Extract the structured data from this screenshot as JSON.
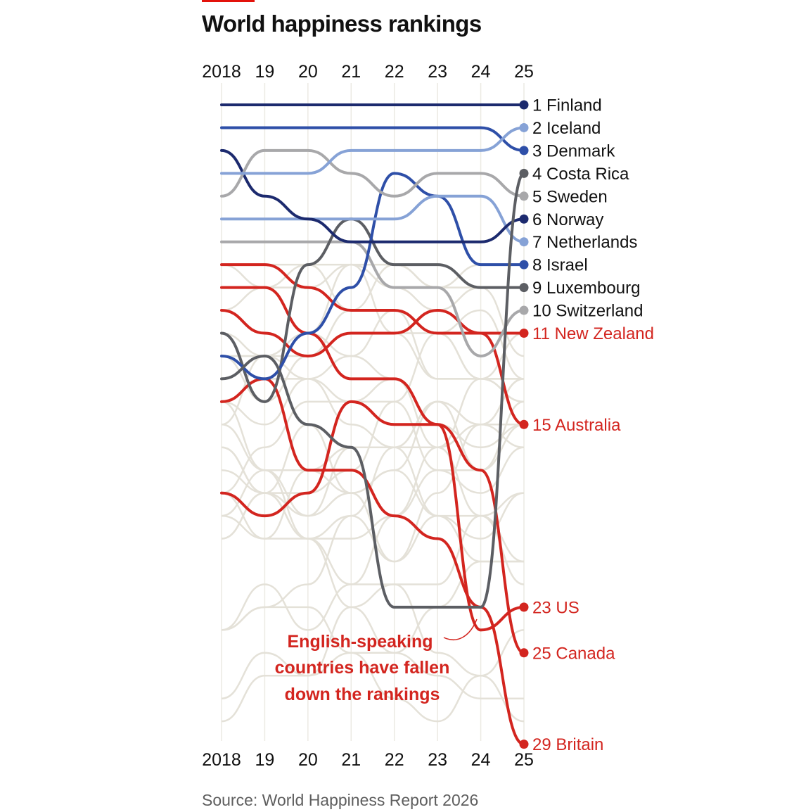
{
  "chart_data": {
    "type": "bump",
    "title": "World happiness rankings",
    "source": "Source: World Happiness Report 2026",
    "years": [
      "2018",
      "19",
      "20",
      "21",
      "22",
      "23",
      "24",
      "25"
    ],
    "annotation": [
      "English-speaking",
      "countries have fallen",
      "down the rankings"
    ],
    "series": [
      {
        "name": "Finland",
        "label": "1 Finland",
        "color": "#1c2a6e",
        "ranks": [
          1,
          1,
          1,
          1,
          1,
          1,
          1,
          1
        ]
      },
      {
        "name": "Iceland",
        "label": "2 Iceland",
        "color": "#86a2d6",
        "ranks": [
          4,
          4,
          4,
          3,
          3,
          3,
          3,
          2
        ]
      },
      {
        "name": "Denmark",
        "label": "3 Denmark",
        "color": "#2e4fa8",
        "ranks": [
          2,
          2,
          2,
          2,
          2,
          2,
          2,
          3
        ]
      },
      {
        "name": "Costa Rica",
        "label": "4 Costa Rica",
        "color": "#5c5e63",
        "ranks": [
          13,
          12,
          15,
          16,
          23,
          23,
          23,
          4
        ]
      },
      {
        "name": "Sweden",
        "label": "5 Sweden",
        "color": "#a8a8aa",
        "ranks": [
          5,
          3,
          3,
          4,
          5,
          4,
          4,
          5
        ]
      },
      {
        "name": "Norway",
        "label": "6 Norway",
        "color": "#1c2a6e",
        "ranks": [
          3,
          5,
          6,
          7,
          7,
          7,
          7,
          6
        ]
      },
      {
        "name": "Netherlands",
        "label": "7 Netherlands",
        "color": "#86a2d6",
        "ranks": [
          6,
          6,
          6,
          6,
          6,
          5,
          5,
          7
        ]
      },
      {
        "name": "Israel",
        "label": "8 Israel",
        "color": "#2e4fa8",
        "ranks": [
          12,
          13,
          11,
          9,
          4,
          5,
          8,
          8
        ]
      },
      {
        "name": "Luxembourg",
        "label": "9 Luxembourg",
        "color": "#5c5e63",
        "ranks": [
          11,
          14,
          8,
          6,
          8,
          8,
          9,
          9
        ]
      },
      {
        "name": "Switzerland",
        "label": "10 Switzerland",
        "color": "#a8a8aa",
        "ranks": [
          7,
          7,
          7,
          7,
          9,
          9,
          12,
          10
        ]
      },
      {
        "name": "New Zealand",
        "label": "11 New Zealand",
        "color": "#d3251f",
        "ranks": [
          8,
          8,
          9,
          10,
          10,
          11,
          11,
          11
        ]
      },
      {
        "name": "Australia",
        "label": "15 Australia",
        "color": "#d3251f",
        "ranks": [
          10,
          11,
          12,
          11,
          11,
          10,
          11,
          15
        ]
      },
      {
        "name": "US",
        "label": "23 US",
        "color": "#d3251f",
        "ranks": [
          18,
          19,
          18,
          14,
          15,
          15,
          24,
          23
        ]
      },
      {
        "name": "Canada",
        "label": "25 Canada",
        "color": "#d3251f",
        "ranks": [
          9,
          9,
          11,
          13,
          13,
          15,
          17,
          25
        ]
      },
      {
        "name": "Britain",
        "label": "29 Britain",
        "color": "#d3251f",
        "ranks": [
          14,
          13,
          17,
          17,
          19,
          20,
          23,
          29
        ]
      }
    ]
  }
}
